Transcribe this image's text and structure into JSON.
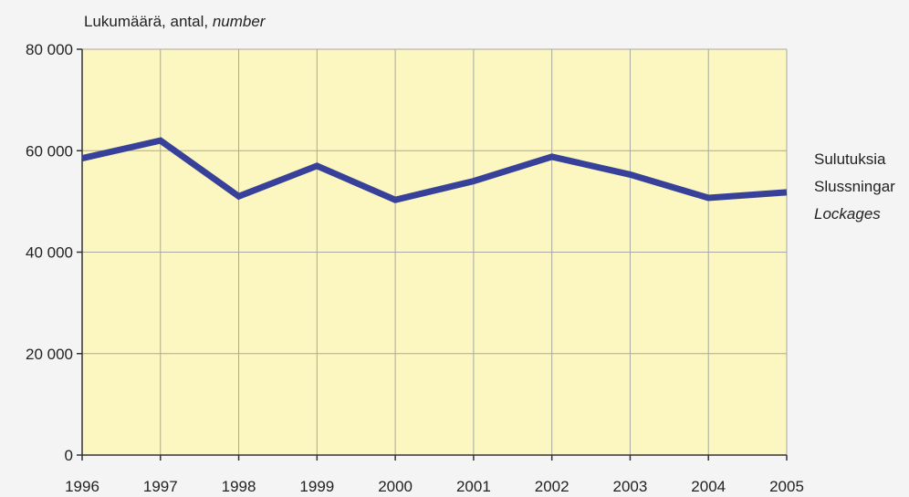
{
  "chart_data": {
    "type": "line",
    "ylabel": {
      "fi": "Lukumäärä, antal, ",
      "en": "number"
    },
    "x": [
      "1996",
      "1997",
      "1998",
      "1999",
      "2000",
      "2001",
      "2002",
      "2003",
      "2004",
      "2005"
    ],
    "series": [
      {
        "name_lines": [
          "Sulutuksia",
          "Slussningar",
          "Lockages"
        ],
        "values": [
          58500,
          62000,
          51000,
          57000,
          50300,
          54000,
          58800,
          55300,
          50700,
          51800
        ]
      }
    ],
    "ylim": [
      0,
      80000
    ],
    "yticks": [
      0,
      20000,
      40000,
      60000,
      80000
    ],
    "ytick_labels": [
      "0",
      "20 000",
      "40 000",
      "60 000",
      "80 000"
    ],
    "grid": true,
    "legend_position": "right",
    "colors": {
      "plot_bg": "#fcf6c0",
      "line": "#38419a",
      "grid": "#a8a8a0",
      "axis": "#333333"
    }
  }
}
